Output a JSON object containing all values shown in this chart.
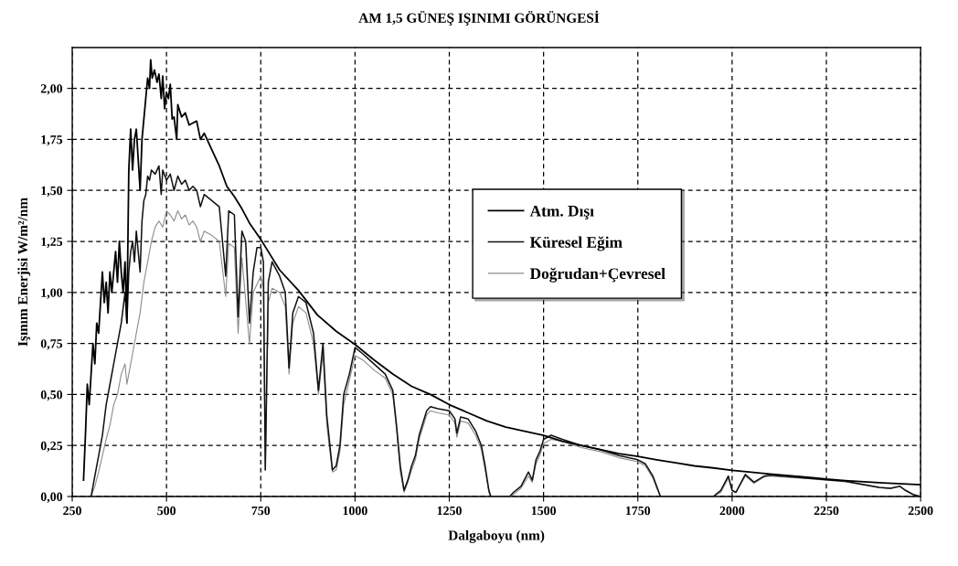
{
  "chart_data": {
    "type": "line",
    "title": "AM 1,5 GÜNEŞ IŞINIMI GÖRÜNGESİ",
    "xlabel": "Dalgaboyu (nm)",
    "ylabel": "Işınım Enerjisi W/m²/nm",
    "xlim": [
      250,
      2500
    ],
    "xticks": [
      250,
      500,
      750,
      1000,
      1250,
      1500,
      1750,
      2000,
      2250,
      2500
    ],
    "ylim": [
      0,
      2.2
    ],
    "yticks": [
      {
        "value": 0,
        "label": "0,00"
      },
      {
        "value": 0.25,
        "label": "0,25"
      },
      {
        "value": 0.5,
        "label": "0,50"
      },
      {
        "value": 0.75,
        "label": "0,75"
      },
      {
        "value": 1.0,
        "label": "1,00"
      },
      {
        "value": 1.25,
        "label": "1,25"
      },
      {
        "value": 1.5,
        "label": "1,50"
      },
      {
        "value": 1.75,
        "label": "1,75"
      },
      {
        "value": 2.0,
        "label": "2,00"
      }
    ],
    "grid": true,
    "legend": "center",
    "marker": "none",
    "line_style": "solid",
    "series": [
      {
        "name": "Atm. Dışı",
        "color": "#000000",
        "x": [
          280,
          285,
          290,
          295,
          300,
          305,
          310,
          315,
          320,
          325,
          330,
          335,
          340,
          345,
          350,
          355,
          360,
          365,
          370,
          375,
          380,
          385,
          390,
          395,
          400,
          405,
          410,
          415,
          420,
          425,
          430,
          435,
          440,
          445,
          450,
          455,
          458,
          462,
          468,
          475,
          480,
          486,
          490,
          495,
          500,
          505,
          510,
          515,
          520,
          527,
          530,
          540,
          550,
          560,
          570,
          580,
          590,
          600,
          620,
          640,
          660,
          680,
          700,
          720,
          750,
          780,
          800,
          850,
          900,
          950,
          1000,
          1050,
          1100,
          1150,
          1200,
          1250,
          1300,
          1350,
          1400,
          1450,
          1500,
          1550,
          1600,
          1650,
          1700,
          1750,
          1800,
          1850,
          1900,
          1950,
          2000,
          2100,
          2200,
          2250,
          2300,
          2400,
          2500
        ],
        "values": [
          0.08,
          0.3,
          0.55,
          0.45,
          0.6,
          0.75,
          0.65,
          0.85,
          0.8,
          0.95,
          1.1,
          0.95,
          1.05,
          0.9,
          1.1,
          1.0,
          1.1,
          1.2,
          1.05,
          1.25,
          1.1,
          1.0,
          1.15,
          0.85,
          1.6,
          1.8,
          1.6,
          1.75,
          1.8,
          1.65,
          1.5,
          1.75,
          1.85,
          1.95,
          2.05,
          2.0,
          2.14,
          2.05,
          2.09,
          2.03,
          2.07,
          1.95,
          2.06,
          1.9,
          1.98,
          1.95,
          2.02,
          1.85,
          1.86,
          1.75,
          1.92,
          1.86,
          1.88,
          1.82,
          1.83,
          1.84,
          1.75,
          1.78,
          1.7,
          1.62,
          1.52,
          1.47,
          1.41,
          1.34,
          1.26,
          1.17,
          1.11,
          1.01,
          0.89,
          0.81,
          0.745,
          0.67,
          0.6,
          0.54,
          0.5,
          0.45,
          0.41,
          0.37,
          0.34,
          0.32,
          0.3,
          0.27,
          0.25,
          0.23,
          0.21,
          0.197,
          0.18,
          0.165,
          0.15,
          0.14,
          0.128,
          0.11,
          0.095,
          0.085,
          0.078,
          0.067,
          0.058
        ]
      },
      {
        "name": "Küresel Eğim",
        "color": "#111111",
        "x": [
          300,
          310,
          320,
          330,
          340,
          350,
          360,
          370,
          380,
          390,
          395,
          400,
          405,
          410,
          415,
          420,
          425,
          430,
          435,
          440,
          445,
          450,
          455,
          460,
          470,
          480,
          486,
          490,
          500,
          510,
          520,
          530,
          540,
          550,
          560,
          570,
          580,
          590,
          600,
          620,
          640,
          657,
          665,
          680,
          690,
          700,
          710,
          720,
          730,
          740,
          750,
          757,
          762,
          770,
          780,
          800,
          815,
          825,
          835,
          850,
          870,
          890,
          903,
          915,
          925,
          940,
          950,
          960,
          970,
          985,
          1000,
          1020,
          1050,
          1080,
          1100,
          1110,
          1120,
          1130,
          1140,
          1150,
          1160,
          1170,
          1190,
          1200,
          1220,
          1250,
          1265,
          1270,
          1280,
          1300,
          1320,
          1335,
          1345,
          1355,
          1360,
          1410,
          1420,
          1440,
          1460,
          1470,
          1480,
          1490,
          1500,
          1520,
          1550,
          1600,
          1650,
          1700,
          1750,
          1770,
          1790,
          1800,
          1810,
          1950,
          1970,
          1990,
          2000,
          2010,
          2035,
          2058,
          2085,
          2100,
          2200,
          2300,
          2390,
          2420,
          2445,
          2460,
          2480,
          2500
        ],
        "values": [
          0.0,
          0.1,
          0.2,
          0.3,
          0.45,
          0.55,
          0.65,
          0.75,
          0.85,
          1.0,
          0.85,
          1.1,
          1.2,
          1.25,
          1.15,
          1.3,
          1.2,
          1.1,
          1.35,
          1.45,
          1.48,
          1.57,
          1.55,
          1.6,
          1.58,
          1.62,
          1.48,
          1.6,
          1.55,
          1.58,
          1.5,
          1.57,
          1.53,
          1.55,
          1.5,
          1.52,
          1.5,
          1.42,
          1.48,
          1.45,
          1.42,
          1.08,
          1.4,
          1.38,
          0.88,
          1.3,
          1.25,
          0.85,
          1.1,
          1.22,
          1.22,
          1.15,
          0.13,
          1.05,
          1.15,
          1.08,
          1.0,
          0.63,
          0.9,
          0.98,
          0.95,
          0.8,
          0.52,
          0.75,
          0.4,
          0.13,
          0.15,
          0.25,
          0.5,
          0.6,
          0.73,
          0.7,
          0.65,
          0.6,
          0.52,
          0.35,
          0.15,
          0.03,
          0.08,
          0.15,
          0.2,
          0.3,
          0.42,
          0.44,
          0.43,
          0.42,
          0.38,
          0.31,
          0.39,
          0.38,
          0.32,
          0.25,
          0.15,
          0.03,
          0.0,
          0.0,
          0.02,
          0.05,
          0.12,
          0.08,
          0.18,
          0.22,
          0.28,
          0.3,
          0.28,
          0.25,
          0.23,
          0.2,
          0.18,
          0.16,
          0.1,
          0.05,
          0.0,
          0.0,
          0.03,
          0.1,
          0.03,
          0.02,
          0.108,
          0.07,
          0.1,
          0.105,
          0.09,
          0.075,
          0.045,
          0.04,
          0.05,
          0.03,
          0.01,
          0.0
        ]
      },
      {
        "name": "Doğrudan+Çevresel",
        "color": "#8c8c8c",
        "x": [
          300,
          310,
          320,
          330,
          340,
          350,
          360,
          370,
          380,
          390,
          395,
          400,
          410,
          420,
          430,
          440,
          450,
          460,
          470,
          480,
          490,
          500,
          510,
          520,
          530,
          540,
          550,
          560,
          570,
          580,
          590,
          600,
          620,
          640,
          657,
          665,
          680,
          690,
          700,
          720,
          730,
          750,
          757,
          762,
          770,
          780,
          800,
          815,
          825,
          835,
          850,
          870,
          890,
          903,
          915,
          925,
          940,
          950,
          960,
          970,
          985,
          1000,
          1020,
          1050,
          1080,
          1100,
          1110,
          1120,
          1130,
          1140,
          1150,
          1160,
          1170,
          1190,
          1200,
          1220,
          1250,
          1265,
          1270,
          1280,
          1300,
          1320,
          1335,
          1345,
          1355,
          1360,
          1410,
          1420,
          1440,
          1460,
          1470,
          1480,
          1490,
          1500,
          1520,
          1550,
          1600,
          1650,
          1700,
          1750,
          1770,
          1790,
          1800,
          1810,
          1950,
          1970,
          1990,
          2000,
          2010,
          2035,
          2058,
          2085,
          2100,
          2200,
          2300,
          2390,
          2420,
          2445,
          2460,
          2480,
          2500
        ],
        "values": [
          0.0,
          0.05,
          0.12,
          0.2,
          0.28,
          0.35,
          0.45,
          0.5,
          0.6,
          0.65,
          0.55,
          0.6,
          0.7,
          0.8,
          0.9,
          1.05,
          1.15,
          1.25,
          1.32,
          1.35,
          1.32,
          1.4,
          1.38,
          1.35,
          1.4,
          1.36,
          1.38,
          1.33,
          1.35,
          1.32,
          1.25,
          1.3,
          1.28,
          1.25,
          0.98,
          1.24,
          1.22,
          0.8,
          1.17,
          0.75,
          1.0,
          1.08,
          1.02,
          0.13,
          0.95,
          1.02,
          1.0,
          0.93,
          0.6,
          0.85,
          0.93,
          0.9,
          0.75,
          0.5,
          0.7,
          0.35,
          0.12,
          0.13,
          0.22,
          0.45,
          0.57,
          0.69,
          0.67,
          0.62,
          0.58,
          0.5,
          0.33,
          0.12,
          0.02,
          0.07,
          0.13,
          0.18,
          0.28,
          0.4,
          0.42,
          0.41,
          0.4,
          0.36,
          0.29,
          0.37,
          0.36,
          0.3,
          0.23,
          0.13,
          0.02,
          0.0,
          0.0,
          0.01,
          0.04,
          0.1,
          0.07,
          0.16,
          0.2,
          0.26,
          0.28,
          0.27,
          0.24,
          0.22,
          0.19,
          0.17,
          0.15,
          0.09,
          0.04,
          0.0,
          0.0,
          0.02,
          0.09,
          0.03,
          0.02,
          0.1,
          0.065,
          0.095,
          0.1,
          0.087,
          0.072,
          0.043,
          0.038,
          0.05,
          0.028,
          0.01,
          0.0
        ]
      }
    ]
  }
}
